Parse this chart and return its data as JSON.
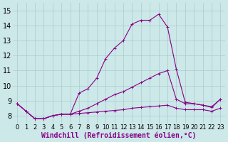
{
  "xlabel": "Windchill (Refroidissement éolien,°C)",
  "background_color": "#cce8e8",
  "grid_color": "#aacccc",
  "line_color": "#880088",
  "x_ticks": [
    0,
    1,
    2,
    3,
    4,
    5,
    6,
    7,
    8,
    9,
    10,
    11,
    12,
    13,
    14,
    15,
    16,
    17,
    18,
    19,
    20,
    21,
    22,
    23
  ],
  "y_ticks": [
    8,
    9,
    10,
    11,
    12,
    13,
    14,
    15
  ],
  "ylim": [
    7.5,
    15.5
  ],
  "xlim": [
    -0.5,
    23.5
  ],
  "series1_x": [
    0,
    1,
    2,
    3,
    4,
    5,
    6,
    7,
    8,
    9,
    10,
    11,
    12,
    13,
    14,
    15,
    16,
    17,
    18,
    19,
    20,
    21,
    22,
    23
  ],
  "series1_y": [
    8.8,
    8.3,
    7.8,
    7.8,
    8.0,
    8.1,
    8.1,
    8.15,
    8.2,
    8.25,
    8.3,
    8.35,
    8.4,
    8.5,
    8.55,
    8.6,
    8.65,
    8.7,
    8.5,
    8.4,
    8.4,
    8.4,
    8.3,
    8.5
  ],
  "series2_x": [
    0,
    1,
    2,
    3,
    4,
    5,
    6,
    7,
    8,
    9,
    10,
    11,
    12,
    13,
    14,
    15,
    16,
    17,
    18,
    19,
    20,
    21,
    22,
    23
  ],
  "series2_y": [
    8.8,
    8.3,
    7.8,
    7.8,
    8.0,
    8.1,
    8.1,
    8.3,
    8.5,
    8.8,
    9.1,
    9.4,
    9.6,
    9.9,
    10.2,
    10.5,
    10.8,
    11.0,
    9.1,
    8.8,
    8.8,
    8.7,
    8.6,
    9.1
  ],
  "series3_x": [
    0,
    1,
    2,
    3,
    4,
    5,
    6,
    7,
    8,
    9,
    10,
    11,
    12,
    13,
    14,
    15,
    16,
    17,
    18,
    19,
    20,
    21,
    22,
    23
  ],
  "series3_y": [
    8.8,
    8.3,
    7.8,
    7.8,
    8.0,
    8.1,
    8.1,
    9.5,
    9.8,
    10.5,
    11.8,
    12.5,
    13.0,
    14.1,
    14.35,
    14.35,
    14.75,
    13.9,
    11.1,
    8.9,
    8.8,
    8.7,
    8.55,
    9.1
  ],
  "xlabel_fontsize": 7,
  "ytick_fontsize": 7,
  "xtick_fontsize": 6
}
